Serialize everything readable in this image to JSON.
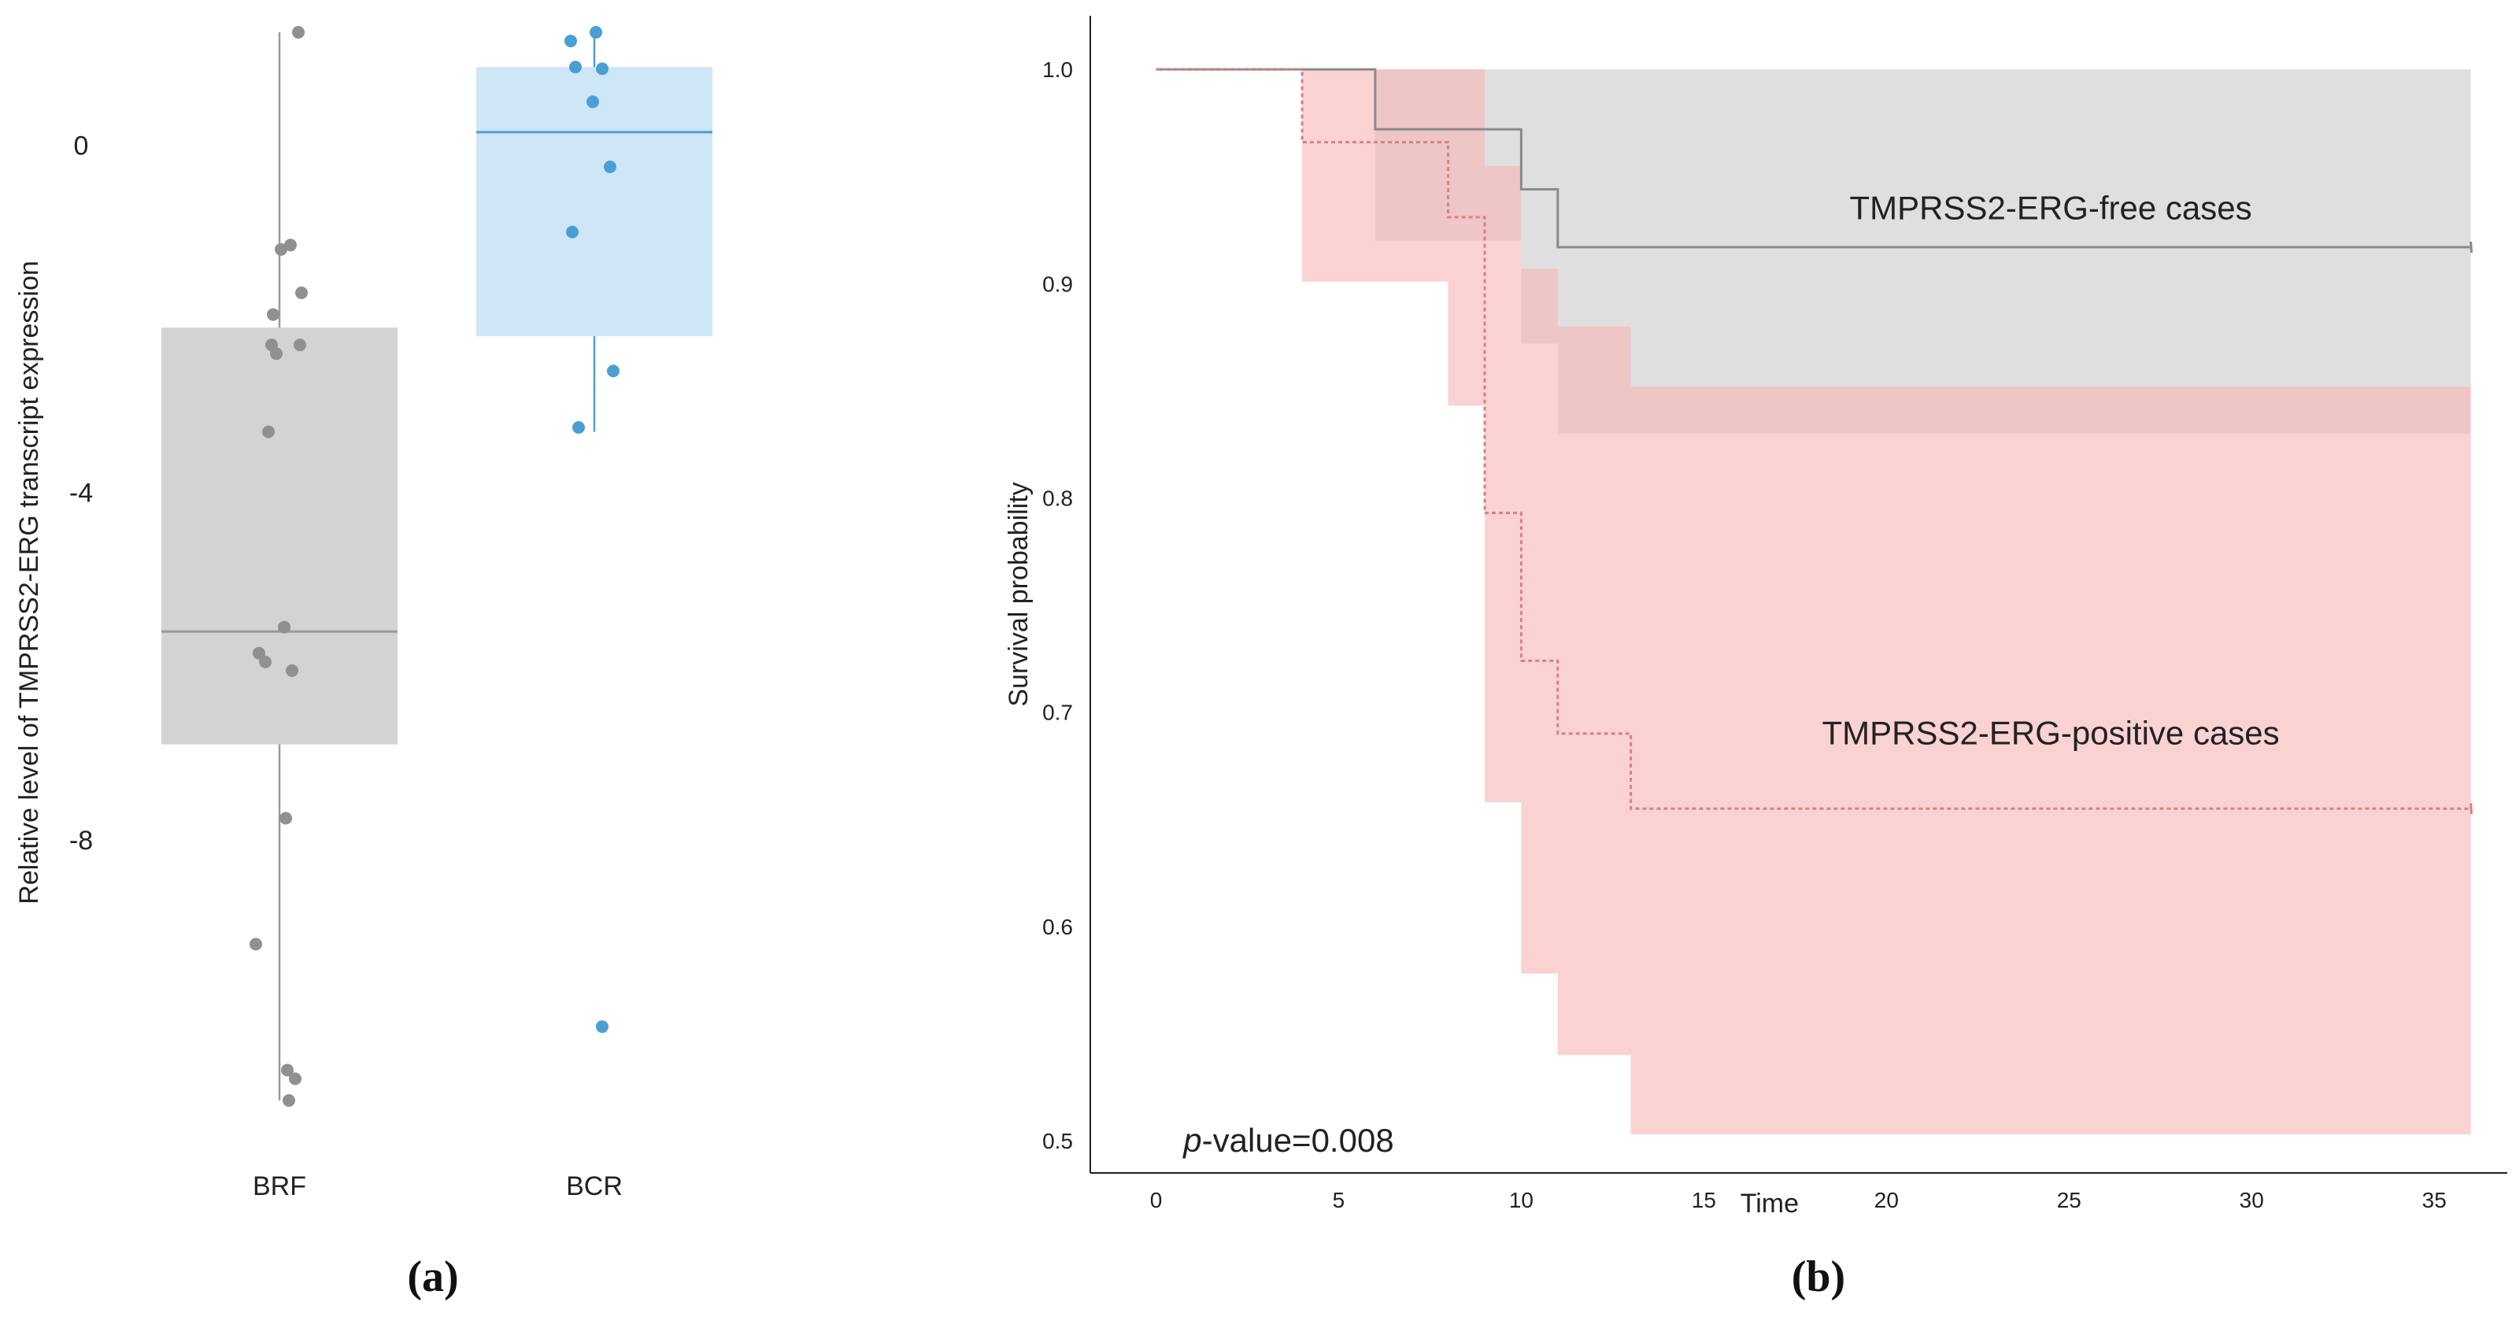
{
  "chart_data": [
    {
      "panel": "(a)",
      "type": "box",
      "xlabel": "",
      "ylabel": "Relative level of TMPRSS2-ERG transcript expression",
      "ylim": [
        -11.2,
        1.4
      ],
      "yticks": [
        0,
        -4,
        -8
      ],
      "ytick_labels": [
        "0",
        "-4",
        "-8"
      ],
      "categories": [
        "BRF",
        "BCR"
      ],
      "groups": [
        {
          "name": "BRF",
          "box_color": "#d3d3d3",
          "point_color": "#909090",
          "line_color": "#9a9a9a",
          "whisker_low": -11.0,
          "q1": -6.9,
          "median": -5.6,
          "q3": -2.1,
          "whisker_high": 1.3,
          "points": [
            {
              "dx": 0.12,
              "y": 1.3
            },
            {
              "dx": 0.01,
              "y": -1.2
            },
            {
              "dx": 0.07,
              "y": -1.15
            },
            {
              "dx": 0.14,
              "y": -1.7
            },
            {
              "dx": -0.04,
              "y": -1.95
            },
            {
              "dx": -0.05,
              "y": -2.3
            },
            {
              "dx": -0.02,
              "y": -2.4
            },
            {
              "dx": 0.13,
              "y": -2.3
            },
            {
              "dx": -0.07,
              "y": -3.3
            },
            {
              "dx": 0.03,
              "y": -5.55
            },
            {
              "dx": -0.13,
              "y": -5.85
            },
            {
              "dx": -0.09,
              "y": -5.95
            },
            {
              "dx": 0.08,
              "y": -6.05
            },
            {
              "dx": 0.04,
              "y": -7.75
            },
            {
              "dx": -0.15,
              "y": -9.2
            },
            {
              "dx": 0.05,
              "y": -10.65
            },
            {
              "dx": 0.1,
              "y": -10.75
            },
            {
              "dx": 0.06,
              "y": -11.0
            }
          ]
        },
        {
          "name": "BCR",
          "box_color": "#cfe6f7",
          "point_color": "#4a9fd4",
          "line_color": "#4a9fd4",
          "whisker_low": -3.3,
          "q1": -2.2,
          "median": 0.15,
          "q3": 0.9,
          "whisker_high": 1.3,
          "points": [
            {
              "dx": -0.15,
              "y": 1.2
            },
            {
              "dx": 0.01,
              "y": 1.3
            },
            {
              "dx": -0.12,
              "y": 0.9
            },
            {
              "dx": 0.05,
              "y": 0.88
            },
            {
              "dx": -0.01,
              "y": 0.5
            },
            {
              "dx": 0.1,
              "y": -0.25
            },
            {
              "dx": -0.14,
              "y": -1.0
            },
            {
              "dx": 0.12,
              "y": -2.6
            },
            {
              "dx": -0.1,
              "y": -3.25
            },
            {
              "dx": 0.05,
              "y": -10.15
            }
          ]
        }
      ]
    },
    {
      "panel": "(b)",
      "type": "step",
      "title": "",
      "xlabel": "Time",
      "ylabel": "Survival probability",
      "xlim": [
        -1.8,
        37.0
      ],
      "ylim": [
        0.485,
        1.025
      ],
      "xticks": [
        0,
        5,
        10,
        15,
        20,
        25,
        30,
        35
      ],
      "xtick_labels": [
        "0",
        "5",
        "10",
        "15",
        "20",
        "25",
        "30",
        "35"
      ],
      "yticks": [
        0.5,
        0.6,
        0.7,
        0.8,
        0.9,
        1.0
      ],
      "ytick_labels": [
        "0.5",
        "0.6",
        "0.7",
        "0.8",
        "0.9",
        "1.0"
      ],
      "series": [
        {
          "name": "TMPRSS2-ERG-free cases",
          "line_color": "#8a8a8a",
          "band_color": "#d9d9d9",
          "dashed": false,
          "steps": [
            [
              0,
              1.0
            ],
            [
              6,
              0.972
            ],
            [
              10,
              0.944
            ],
            [
              11,
              0.917
            ],
            [
              36,
              0.917
            ]
          ],
          "ci_upper": [
            [
              0,
              1.0
            ],
            [
              36,
              1.0
            ]
          ],
          "ci_lower": [
            [
              0,
              1.0
            ],
            [
              6,
              0.92
            ],
            [
              10,
              0.872
            ],
            [
              11,
              0.83
            ],
            [
              36,
              0.83
            ]
          ]
        },
        {
          "name": "TMPRSS2-ERG-positive cases",
          "line_color": "#d98080",
          "band_color": "#f7b7b7",
          "dashed": true,
          "steps": [
            [
              0,
              1.0
            ],
            [
              4,
              0.966
            ],
            [
              8,
              0.931
            ],
            [
              9,
              0.793
            ],
            [
              10,
              0.724
            ],
            [
              11,
              0.69
            ],
            [
              13,
              0.655
            ],
            [
              36,
              0.655
            ]
          ],
          "ci_upper": [
            [
              0,
              1.0
            ],
            [
              4,
              1.0
            ],
            [
              9,
              0.955
            ],
            [
              10,
              0.907
            ],
            [
              11,
              0.88
            ],
            [
              13,
              0.852
            ],
            [
              36,
              0.852
            ]
          ],
          "ci_lower": [
            [
              0,
              1.0
            ],
            [
              4,
              0.901
            ],
            [
              8,
              0.843
            ],
            [
              9,
              0.658
            ],
            [
              10,
              0.578
            ],
            [
              11,
              0.54
            ],
            [
              13,
              0.503
            ],
            [
              36,
              0.503
            ]
          ]
        }
      ],
      "annotations": {
        "pvalue_prefix": "p",
        "pvalue_rest": "-value=0.008"
      }
    }
  ],
  "captions": {
    "a": "(a)",
    "b": "(b)"
  }
}
